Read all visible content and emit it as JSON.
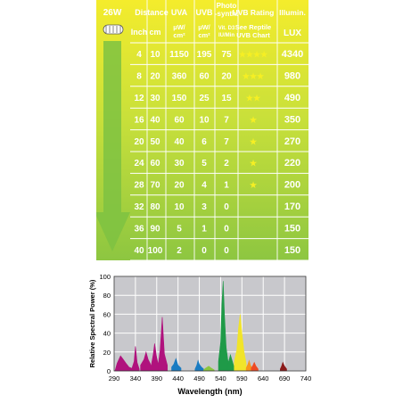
{
  "table": {
    "header": {
      "watt": "26W",
      "distance": "Distance",
      "inch": "Inch",
      "cm": "cm",
      "uva": "UVA",
      "uvb": "UVB",
      "photo": "Photo\n-synth.",
      "uvb_rating": "UVB Rating",
      "illum": "Illumin.",
      "uva_unit": "µW/\ncm²",
      "uvb_unit": "µW/\ncm²",
      "photo_unit": "Vit. D3\nIU/Min",
      "rating_sub": "See Reptile\nUVB Chart",
      "lux": "LUX"
    },
    "rows": [
      {
        "inch": "4",
        "cm": "10",
        "uva": "1150",
        "uvb": "195",
        "photo": "75",
        "stars": 4,
        "lux": "4340"
      },
      {
        "inch": "8",
        "cm": "20",
        "uva": "360",
        "uvb": "60",
        "photo": "20",
        "stars": 3,
        "lux": "980"
      },
      {
        "inch": "12",
        "cm": "30",
        "uva": "150",
        "uvb": "25",
        "photo": "15",
        "stars": 2,
        "lux": "490"
      },
      {
        "inch": "16",
        "cm": "40",
        "uva": "60",
        "uvb": "10",
        "photo": "7",
        "stars": 1,
        "lux": "350"
      },
      {
        "inch": "20",
        "cm": "50",
        "uva": "40",
        "uvb": "6",
        "photo": "7",
        "stars": 1,
        "lux": "270"
      },
      {
        "inch": "24",
        "cm": "60",
        "uva": "30",
        "uvb": "5",
        "photo": "2",
        "stars": 1,
        "lux": "220"
      },
      {
        "inch": "28",
        "cm": "70",
        "uva": "20",
        "uvb": "4",
        "photo": "1",
        "stars": 1,
        "lux": "200"
      },
      {
        "inch": "32",
        "cm": "80",
        "uva": "10",
        "uvb": "3",
        "photo": "0",
        "stars": 0,
        "lux": "170"
      },
      {
        "inch": "36",
        "cm": "90",
        "uva": "5",
        "uvb": "1",
        "photo": "0",
        "stars": 0,
        "lux": "150"
      },
      {
        "inch": "40",
        "cm": "100",
        "uva": "2",
        "uvb": "0",
        "photo": "0",
        "stars": 0,
        "lux": "150"
      }
    ]
  },
  "chart_data": {
    "type": "area",
    "xlabel": "Wavelength (nm)",
    "ylabel": "Relative Spectral Power (%)",
    "xlim": [
      290,
      740
    ],
    "ylim": [
      0,
      100
    ],
    "xticks": [
      290,
      340,
      390,
      440,
      490,
      540,
      590,
      640,
      690,
      740
    ],
    "yticks": [
      0,
      20,
      40,
      60,
      80,
      100
    ],
    "grid": true,
    "peaks": [
      {
        "x": [
          292,
          297,
          305,
          310,
          318,
          325,
          335
        ],
        "y": [
          0,
          8,
          16,
          13,
          8,
          4,
          2
        ],
        "color": "#b0127d"
      },
      {
        "x": [
          332,
          337,
          340,
          344,
          349
        ],
        "y": [
          3,
          10,
          26,
          9,
          2
        ],
        "color": "#b0127d"
      },
      {
        "x": [
          352,
          360,
          365,
          370,
          378
        ],
        "y": [
          6,
          12,
          20,
          12,
          5
        ],
        "color": "#b0127d"
      },
      {
        "x": [
          378,
          382,
          385,
          390,
          394
        ],
        "y": [
          8,
          18,
          29,
          14,
          6
        ],
        "color": "#b0127d"
      },
      {
        "x": [
          394,
          398,
          403,
          408,
          415
        ],
        "y": [
          8,
          22,
          57,
          18,
          6
        ],
        "color": "#b0127d"
      },
      {
        "x": [
          425,
          430,
          435,
          440,
          447
        ],
        "y": [
          4,
          7,
          13,
          6,
          3
        ],
        "color": "#1a7cc2"
      },
      {
        "x": [
          480,
          484,
          487,
          490,
          495,
          500
        ],
        "y": [
          2,
          6,
          11,
          7,
          4,
          2
        ],
        "color": "#1a7cc2"
      },
      {
        "x": [
          500,
          505,
          512,
          518,
          525
        ],
        "y": [
          1,
          3,
          5,
          3,
          1
        ],
        "color": "#8cc63f"
      },
      {
        "x": [
          535,
          540,
          543,
          546,
          549,
          553,
          558
        ],
        "y": [
          10,
          30,
          70,
          95,
          60,
          25,
          8
        ],
        "color": "#1f9a48"
      },
      {
        "x": [
          556,
          560,
          563,
          567,
          571
        ],
        "y": [
          6,
          12,
          17,
          11,
          5
        ],
        "color": "#1f9a48"
      },
      {
        "x": [
          572,
          578,
          582,
          586,
          590,
          595,
          600
        ],
        "y": [
          10,
          22,
          45,
          60,
          40,
          20,
          8
        ],
        "color": "#f1e42a"
      },
      {
        "x": [
          600,
          604,
          607,
          610,
          615
        ],
        "y": [
          3,
          7,
          11,
          6,
          2
        ],
        "color": "#f7941d"
      },
      {
        "x": [
          612,
          616,
          619,
          623,
          628
        ],
        "y": [
          3,
          6,
          9,
          5,
          2
        ],
        "color": "#ef4a24"
      },
      {
        "x": [
          680,
          683,
          686,
          690,
          695
        ],
        "y": [
          2,
          5,
          9,
          5,
          2
        ],
        "color": "#8b1a1a"
      }
    ]
  }
}
